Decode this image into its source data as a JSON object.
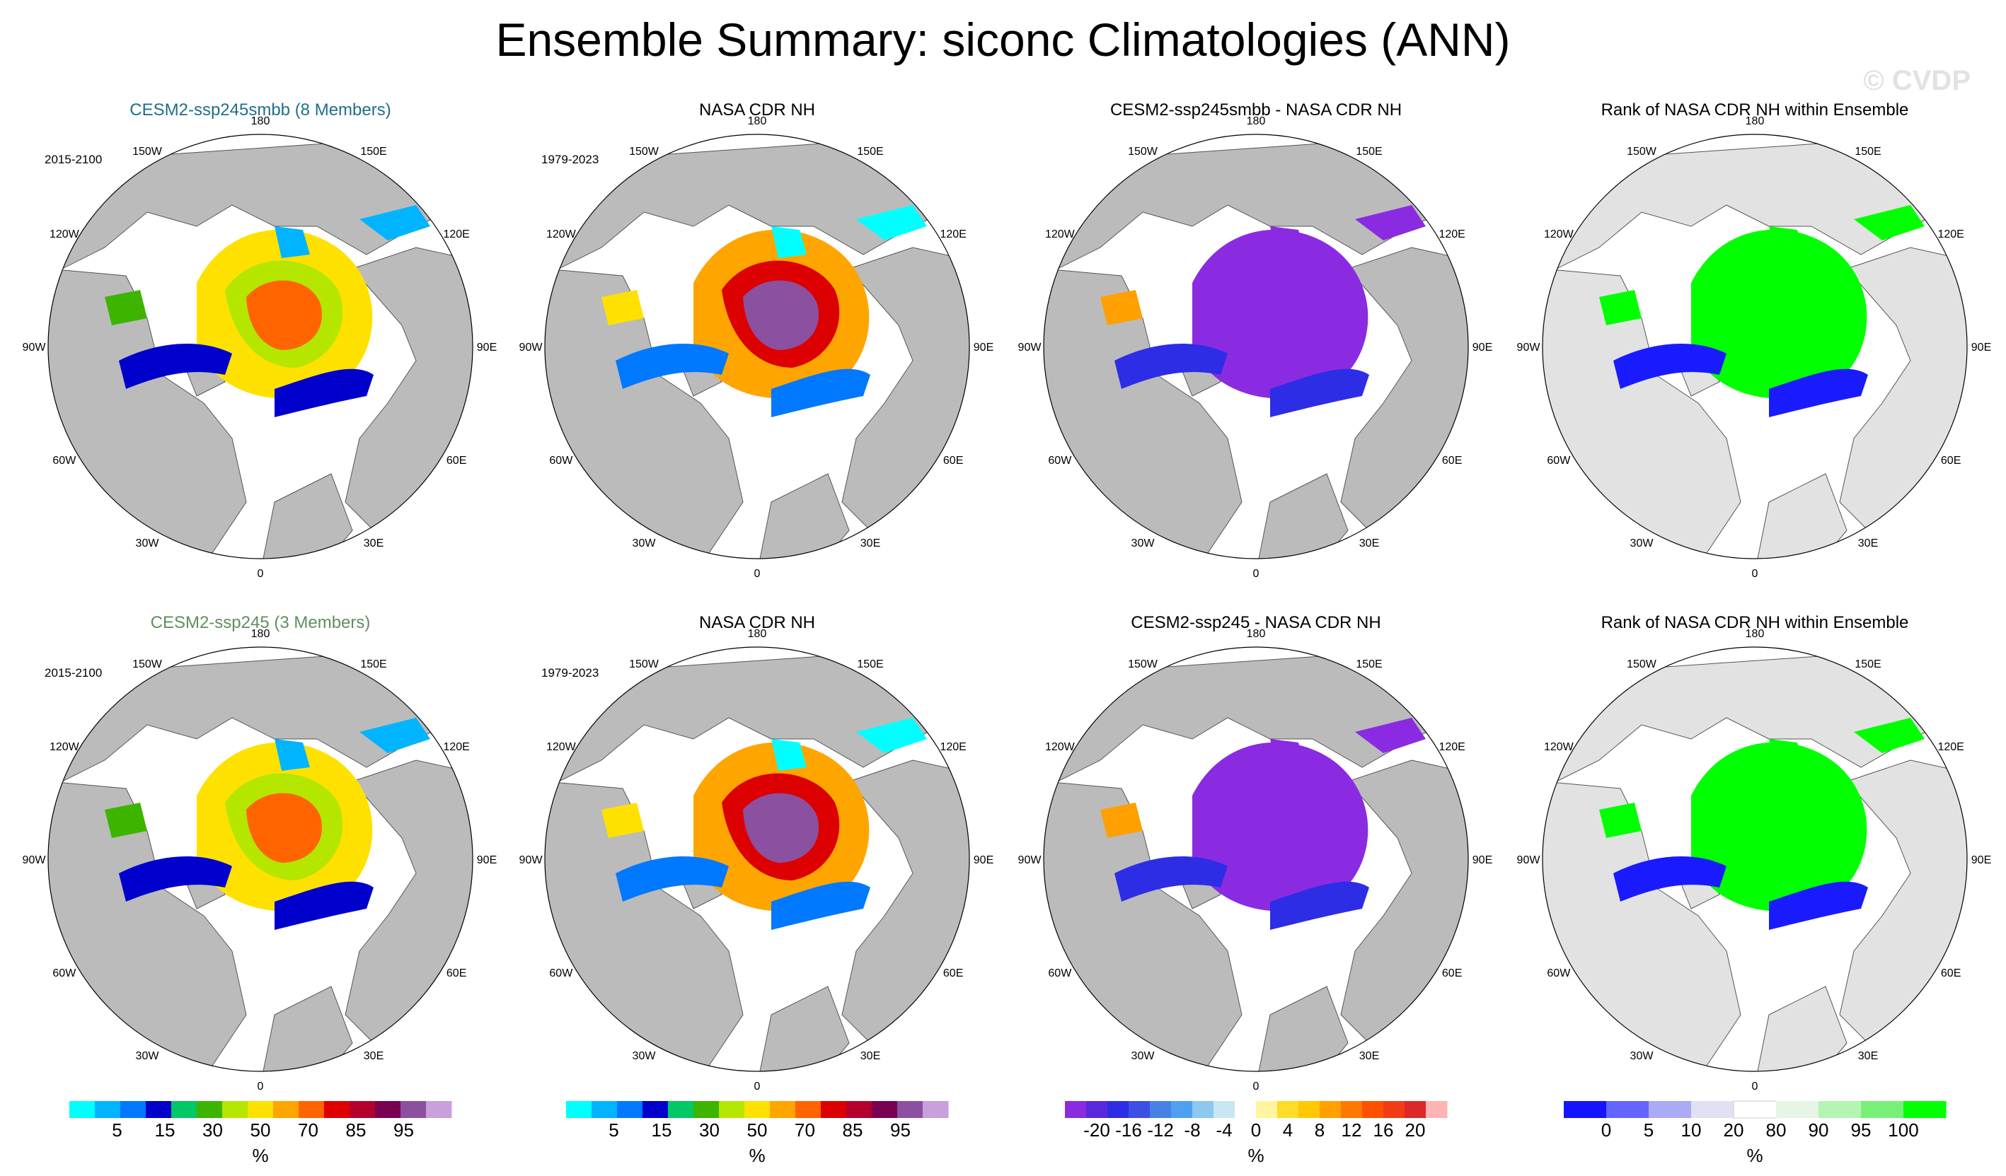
{
  "title": "Ensemble Summary: siconc Climatologies (ANN)",
  "watermark": "© CVDP",
  "lon_labels": [
    "180",
    "150E",
    "120E",
    "90E",
    "60E",
    "30E",
    "0",
    "30W",
    "60W",
    "90W",
    "120W",
    "150W"
  ],
  "colors": {
    "land": "#bbbbbb",
    "rank_land": "#e2e2e2",
    "rank_high": "#00ff00",
    "rank_low": "#1a1aff",
    "diff_neg": "#8a2be2",
    "title_row1": "#1f6f8b",
    "title_row2": "#5f8f5f"
  },
  "rows": [
    {
      "model_title": "CESM2-ssp245smbb (8 Members)",
      "model_period": "2015-2100",
      "obs_title": "NASA CDR NH",
      "obs_period": "1979-2023",
      "diff_title": "CESM2-ssp245smbb - NASA CDR NH",
      "rank_title": "Rank of NASA CDR NH within Ensemble"
    },
    {
      "model_title": "CESM2-ssp245 (3 Members)",
      "model_period": "2015-2100",
      "obs_title": "NASA CDR NH",
      "obs_period": "1979-2023",
      "diff_title": "CESM2-ssp245 - NASA CDR NH",
      "rank_title": "Rank of NASA CDR NH within Ensemble"
    }
  ],
  "colorbars": {
    "conc": {
      "unit": "%",
      "labels": [
        "5",
        "15",
        "30",
        "50",
        "70",
        "85",
        "95"
      ],
      "colors": [
        "#00ffff",
        "#00b4ff",
        "#0078ff",
        "#0000cd",
        "#00c864",
        "#3cb400",
        "#b4e600",
        "#ffe100",
        "#ffa500",
        "#ff6400",
        "#dc0000",
        "#b4002d",
        "#780050",
        "#8c50a0",
        "#c8a0dc"
      ]
    },
    "diff": {
      "unit": "%",
      "labels": [
        "-20",
        "-16",
        "-12",
        "-8",
        "-4",
        "0",
        "4",
        "8",
        "12",
        "16",
        "20"
      ],
      "colors": [
        "#8a2be2",
        "#5a28dc",
        "#2d2de6",
        "#3c50e6",
        "#4682e6",
        "#50a0f0",
        "#8cc8f0",
        "#c8e6f5",
        "#ffffff",
        "#fff5a0",
        "#ffdc28",
        "#ffc800",
        "#ffa000",
        "#ff7800",
        "#ff5000",
        "#f03c14",
        "#dc2828",
        "#ffb4b4"
      ]
    },
    "rank": {
      "unit": "%",
      "labels": [
        "0",
        "5",
        "10",
        "20",
        "80",
        "90",
        "95",
        "100"
      ],
      "colors": [
        "#1414ff",
        "#6464ff",
        "#aaaaf5",
        "#e1e1f5",
        "#ffffff",
        "#e6f5e6",
        "#b4f5b4",
        "#78f078",
        "#00ff00"
      ]
    }
  }
}
